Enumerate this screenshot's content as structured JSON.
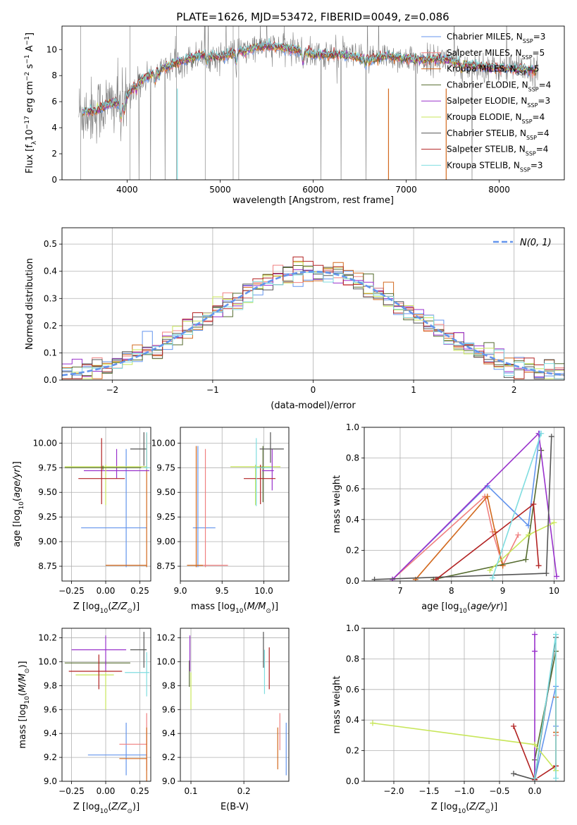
{
  "figure_title": "PLATE=1626, MJD=53472, FIBERID=0049, z=0.086",
  "colors": {
    "Chabrier MILES": "#6495ed",
    "Salpeter MILES": "#f08080",
    "Kroupa MILES": "#d2691e",
    "Chabrier ELODIE": "#556b2f",
    "Salpeter ELODIE": "#9932cc",
    "Kroupa ELODIE": "#c8e65a",
    "Chabrier STELIB": "#555555",
    "Salpeter STELIB": "#b22222",
    "Kroupa STELIB": "#7fdde0",
    "data": "#808080"
  },
  "chart_data": [
    {
      "id": "spectrum",
      "type": "line",
      "xlabel": "wavelength [Angstrom, rest frame]",
      "ylabel": "Flux [f_λ 10^-17 erg cm^-2 s^-1 A^-1]",
      "xlim": [
        3300,
        8700
      ],
      "ylim": [
        0,
        11.8
      ],
      "xticks": [
        4000,
        5000,
        6000,
        7000,
        8000
      ],
      "yticks": [
        0,
        2,
        4,
        6,
        8,
        10
      ],
      "legend_position": "right",
      "legend": [
        {
          "label": "Chabrier MILES, N",
          "sub": "SSP",
          "post": "=3"
        },
        {
          "label": "Salpeter MILES, N",
          "sub": "SSP",
          "post": "=5"
        },
        {
          "label": "Kroupa MILES, N",
          "sub": "SSP",
          "post": "=5"
        },
        {
          "label": "Chabrier ELODIE, N",
          "sub": "SSP",
          "post": "=4"
        },
        {
          "label": "Salpeter ELODIE, N",
          "sub": "SSP",
          "post": "=3"
        },
        {
          "label": "Kroupa ELODIE, N",
          "sub": "SSP",
          "post": "=4"
        },
        {
          "label": "Chabrier STELIB, N",
          "sub": "SSP",
          "post": "=4"
        },
        {
          "label": "Salpeter STELIB, N",
          "sub": "SSP",
          "post": "=4"
        },
        {
          "label": "Kroupa STELIB, N",
          "sub": "SSP",
          "post": "=3"
        }
      ],
      "model_trend": {
        "x": [
          3500,
          3650,
          3800,
          3950,
          4100,
          4300,
          4500,
          4800,
          5000,
          5200,
          5500,
          5800,
          6000,
          6300,
          6600,
          6800,
          7000,
          7200,
          7400,
          7600,
          7800,
          8000,
          8200,
          8400
        ],
        "y": [
          5.2,
          5.3,
          5.8,
          6.0,
          7.4,
          8.3,
          8.9,
          9.6,
          9.4,
          9.9,
          10.3,
          10.0,
          9.6,
          9.6,
          9.2,
          9.5,
          9.3,
          9.2,
          9.3,
          8.9,
          8.7,
          8.6,
          8.5,
          8.4
        ]
      }
    },
    {
      "id": "residuals",
      "type": "step",
      "xlabel": "(data-model)/error",
      "ylabel": "Normed distribution",
      "xlim": [
        -2.5,
        2.5
      ],
      "ylim": [
        0,
        0.56
      ],
      "xticks": [
        -2,
        -1,
        0,
        1,
        2
      ],
      "yticks": [
        0.0,
        0.1,
        0.2,
        0.3,
        0.4,
        0.5
      ],
      "legend_position": "top-right",
      "legend": [
        "N(0, 1)"
      ]
    },
    {
      "id": "age_vs_Z",
      "type": "errorbar",
      "xlabel": "Z [log10(Z/Z⊙)]",
      "ylabel": "age [log10(age/yr)]",
      "xlim": [
        -0.32,
        0.33
      ],
      "ylim": [
        8.6,
        10.16
      ],
      "xticks": [
        -0.25,
        0.0,
        0.25
      ],
      "yticks": [
        8.75,
        9.0,
        9.25,
        9.5,
        9.75,
        10.0
      ],
      "points": [
        {
          "model": "Chabrier MILES",
          "x": 0.15,
          "xerr": [
            0.33,
            0.15
          ],
          "y": 9.14,
          "yerr": [
            0.4,
            0.8
          ]
        },
        {
          "model": "Kroupa MILES",
          "x": 0.3,
          "xerr": [
            0.3,
            0.0
          ],
          "y": 8.76,
          "yerr": [
            0.02,
            1.34
          ]
        },
        {
          "model": "Salpeter ELODIE",
          "x": 0.08,
          "xerr": [
            0.24,
            0.24
          ],
          "y": 9.72,
          "yerr": [
            0.08,
            0.22
          ]
        },
        {
          "model": "Kroupa ELODIE",
          "x": 0.0,
          "xerr": [
            0.3,
            0.3
          ],
          "y": 9.76,
          "yerr": [
            0.39,
            0.02
          ]
        },
        {
          "model": "Chabrier ELODIE",
          "x": -0.02,
          "xerr": [
            0.28,
            0.28
          ],
          "y": 9.75,
          "yerr": [
            0.02,
            0.02
          ]
        },
        {
          "model": "Salpeter STELIB",
          "x": -0.03,
          "xerr": [
            0.17,
            0.17
          ],
          "y": 9.64,
          "yerr": [
            0.26,
            0.41
          ]
        },
        {
          "model": "Chabrier STELIB",
          "x": 0.28,
          "xerr": [
            0.1,
            0.02
          ],
          "y": 9.94,
          "yerr": [
            0.17,
            0.17
          ]
        },
        {
          "model": "Kroupa STELIB",
          "x": 0.3,
          "xerr": [
            0.02,
            0.02
          ],
          "y": 9.75,
          "yerr": [
            0.02,
            0.36
          ]
        }
      ]
    },
    {
      "id": "age_vs_mass",
      "type": "errorbar",
      "xlabel": "mass [log10(M/M⊙)]",
      "ylabel": "",
      "xlim": [
        9.0,
        10.3
      ],
      "ylim": [
        8.6,
        10.16
      ],
      "xticks": [
        9.0,
        9.5,
        10.0
      ],
      "yticks": [
        8.75,
        9.0,
        9.25,
        9.5,
        9.75,
        10.0
      ],
      "points": [
        {
          "model": "Chabrier MILES",
          "x": 9.21,
          "xerr": [
            0.06,
            0.21
          ],
          "y": 9.14,
          "yerr": [
            0.4,
            0.83
          ]
        },
        {
          "model": "Salpeter MILES",
          "x": 9.3,
          "xerr": [
            0.09,
            0.27
          ],
          "y": 8.76,
          "yerr": [
            0.02,
            1.18
          ]
        },
        {
          "model": "Kroupa MILES",
          "x": 9.19,
          "xerr": [
            0.11,
            0.08
          ],
          "y": 8.76,
          "yerr": [
            0.02,
            1.21
          ]
        },
        {
          "model": "Kroupa ELODIE",
          "x": 9.9,
          "xerr": [
            0.3,
            0.3
          ],
          "y": 9.76,
          "yerr": [
            0.39,
            0.02
          ]
        },
        {
          "model": "Chabrier ELODIE",
          "x": 9.99,
          "xerr": [
            0.02,
            0.02
          ],
          "y": 9.75,
          "yerr": [
            0.35,
            0.22
          ]
        },
        {
          "model": "Salpeter ELODIE",
          "x": 10.1,
          "xerr": [
            0.12,
            0.02
          ],
          "y": 9.72,
          "yerr": [
            0.2,
            0.22
          ]
        },
        {
          "model": "Salpeter STELIB",
          "x": 9.96,
          "xerr": [
            0.2,
            0.18
          ],
          "y": 9.64,
          "yerr": [
            0.26,
            0.14
          ]
        },
        {
          "model": "Chabrier STELIB",
          "x": 10.08,
          "xerr": [
            0.13,
            0.16
          ],
          "y": 9.94,
          "yerr": [
            0.14,
            0.17
          ]
        },
        {
          "model": "Kroupa STELIB",
          "x": 9.91,
          "xerr": [
            0.02,
            0.19
          ],
          "y": 9.75,
          "yerr": [
            0.39,
            0.3
          ]
        }
      ]
    },
    {
      "id": "mass_weight_vs_age",
      "type": "line",
      "xlabel": "age [log10(age/yr)]",
      "ylabel": "mass weight",
      "xlim": [
        6.3,
        10.2
      ],
      "ylim": [
        0,
        1.0
      ],
      "xticks": [
        7,
        8,
        9,
        10
      ],
      "yticks": [
        0.0,
        0.2,
        0.4,
        0.6,
        0.8,
        1.0
      ],
      "series": [
        {
          "model": "Chabrier MILES",
          "x": [
            6.85,
            8.7,
            9.5,
            9.72
          ],
          "y": [
            0.01,
            0.62,
            0.36,
            0.96
          ]
        },
        {
          "model": "Salpeter MILES",
          "x": [
            6.85,
            8.65,
            8.8,
            9.0,
            9.3
          ],
          "y": [
            0.01,
            0.55,
            0.32,
            0.1,
            0.3
          ]
        },
        {
          "model": "Kroupa MILES",
          "x": [
            7.3,
            8.7,
            8.85,
            9.0
          ],
          "y": [
            0.01,
            0.55,
            0.32,
            0.1
          ]
        },
        {
          "model": "Chabrier ELODIE",
          "x": [
            7.65,
            9.45,
            9.75
          ],
          "y": [
            0.01,
            0.14,
            0.85
          ]
        },
        {
          "model": "Salpeter ELODIE",
          "x": [
            6.85,
            9.7,
            10.05
          ],
          "y": [
            0.01,
            0.96,
            0.03
          ]
        },
        {
          "model": "Kroupa ELODIE",
          "x": [
            8.75,
            9.5,
            10.0
          ],
          "y": [
            0.07,
            0.3,
            0.38
          ]
        },
        {
          "model": "Chabrier STELIB",
          "x": [
            6.5,
            9.85,
            9.95
          ],
          "y": [
            0.01,
            0.05,
            0.94
          ]
        },
        {
          "model": "Salpeter STELIB",
          "x": [
            7.7,
            9.6,
            9.7
          ],
          "y": [
            0.01,
            0.5,
            0.1
          ]
        },
        {
          "model": "Kroupa STELIB",
          "x": [
            8.8,
            9.75
          ],
          "y": [
            0.02,
            0.96
          ]
        }
      ]
    },
    {
      "id": "mass_vs_Z",
      "type": "errorbar",
      "xlabel": "Z [log10(Z/Z⊙)]",
      "ylabel": "mass [log10(M/M⊙)]",
      "xlim": [
        -0.32,
        0.33
      ],
      "ylim": [
        9.0,
        10.28
      ],
      "xticks": [
        -0.25,
        0.0,
        0.25
      ],
      "yticks": [
        9.0,
        9.2,
        9.4,
        9.6,
        9.8,
        10.0,
        10.2
      ],
      "points": [
        {
          "model": "Chabrier MILES",
          "x": 0.15,
          "xerr": [
            0.28,
            0.15
          ],
          "y": 9.22,
          "yerr": [
            0.17,
            0.27
          ]
        },
        {
          "model": "Salpeter MILES",
          "x": 0.3,
          "xerr": [
            0.2,
            0.0
          ],
          "y": 9.31,
          "yerr": [
            0.22,
            0.26
          ]
        },
        {
          "model": "Kroupa MILES",
          "x": 0.3,
          "xerr": [
            0.2,
            0.0
          ],
          "y": 9.19,
          "yerr": [
            0.19,
            0.26
          ]
        },
        {
          "model": "Chabrier ELODIE",
          "x": 0.0,
          "xerr": [
            0.3,
            0.18
          ],
          "y": 9.99,
          "yerr": [
            0.02,
            0.02
          ]
        },
        {
          "model": "Salpeter ELODIE",
          "x": 0.0,
          "xerr": [
            0.25,
            0.15
          ],
          "y": 10.1,
          "yerr": [
            0.18,
            0.12
          ]
        },
        {
          "model": "Kroupa ELODIE",
          "x": 0.0,
          "xerr": [
            0.22,
            0.06
          ],
          "y": 9.89,
          "yerr": [
            0.29,
            0.02
          ]
        },
        {
          "model": "Salpeter STELIB",
          "x": -0.05,
          "xerr": [
            0.22,
            0.17
          ],
          "y": 9.92,
          "yerr": [
            0.15,
            0.14
          ]
        },
        {
          "model": "Chabrier STELIB",
          "x": 0.28,
          "xerr": [
            0.1,
            0.02
          ],
          "y": 10.1,
          "yerr": [
            0.15,
            0.15
          ]
        },
        {
          "model": "Kroupa STELIB",
          "x": 0.3,
          "xerr": [
            0.16,
            0.02
          ],
          "y": 9.91,
          "yerr": [
            0.2,
            0.17
          ]
        }
      ]
    },
    {
      "id": "mass_vs_ebv",
      "type": "errorbar",
      "xlabel": "E(B-V)",
      "ylabel": "",
      "xlim": [
        0.08,
        0.285
      ],
      "ylim": [
        9.0,
        10.28
      ],
      "xticks": [
        0.1,
        0.2
      ],
      "yticks": [
        9.0,
        9.2,
        9.4,
        9.6,
        9.8,
        10.0,
        10.2
      ],
      "points": [
        {
          "model": "Chabrier MILES",
          "x": 0.28,
          "y": 9.22,
          "yerr": [
            0.17,
            0.27
          ]
        },
        {
          "model": "Salpeter MILES",
          "x": 0.268,
          "y": 9.31,
          "yerr": [
            0.05,
            0.26
          ]
        },
        {
          "model": "Kroupa MILES",
          "x": 0.264,
          "y": 9.19,
          "yerr": [
            0.09,
            0.26
          ]
        },
        {
          "model": "Chabrier ELODIE",
          "x": 0.097,
          "y": 9.99,
          "yerr": [
            0.2,
            0.02
          ]
        },
        {
          "model": "Salpeter ELODIE",
          "x": 0.098,
          "y": 10.1,
          "yerr": [
            0.18,
            0.12
          ]
        },
        {
          "model": "Kroupa ELODIE",
          "x": 0.1,
          "y": 9.89,
          "yerr": [
            0.29,
            0.02
          ]
        },
        {
          "model": "Salpeter STELIB",
          "x": 0.248,
          "y": 9.92,
          "yerr": [
            0.15,
            0.2
          ]
        },
        {
          "model": "Chabrier STELIB",
          "x": 0.237,
          "y": 10.1,
          "yerr": [
            0.15,
            0.15
          ]
        },
        {
          "model": "Kroupa STELIB",
          "x": 0.239,
          "y": 9.93,
          "yerr": [
            0.2,
            0.17
          ]
        }
      ]
    },
    {
      "id": "mass_weight_vs_Z",
      "type": "line",
      "xlabel": "Z [log10(Z/Z⊙)]",
      "ylabel": "mass weight",
      "xlim": [
        -2.42,
        0.42
      ],
      "ylim": [
        0,
        1.0
      ],
      "xticks": [
        -2.0,
        -1.5,
        -1.0,
        -0.5,
        0.0
      ],
      "yticks": [
        0.0,
        0.2,
        0.4,
        0.6,
        0.8,
        1.0
      ],
      "series": [
        {
          "model": "Chabrier MILES",
          "x": [
            0.0,
            0.3,
            0.3
          ],
          "y": [
            0.01,
            0.62,
            0.36
          ]
        },
        {
          "model": "Salpeter MILES",
          "x": [
            0.3,
            0.3,
            0.3,
            0.3
          ],
          "y": [
            0.55,
            0.32,
            0.1,
            0.3
          ]
        },
        {
          "model": "Kroupa MILES",
          "x": [
            0.3,
            0.3,
            0.3
          ],
          "y": [
            0.55,
            0.32,
            0.1
          ]
        },
        {
          "model": "Chabrier ELODIE",
          "x": [
            0.0,
            0.0,
            0.3
          ],
          "y": [
            0.01,
            0.14,
            0.85
          ]
        },
        {
          "model": "Salpeter ELODIE",
          "x": [
            0.0,
            0.0,
            0.0
          ],
          "y": [
            0.01,
            0.96,
            0.85
          ]
        },
        {
          "model": "Kroupa ELODIE",
          "x": [
            -2.3,
            0.0,
            0.3
          ],
          "y": [
            0.38,
            0.24,
            0.07
          ]
        },
        {
          "model": "Chabrier STELIB",
          "x": [
            -0.3,
            0.0,
            0.3
          ],
          "y": [
            0.05,
            0.01,
            0.94
          ]
        },
        {
          "model": "Salpeter STELIB",
          "x": [
            -0.3,
            0.0,
            0.3
          ],
          "y": [
            0.36,
            0.01,
            0.1
          ]
        },
        {
          "model": "Kroupa STELIB",
          "x": [
            0.0,
            0.3,
            0.3
          ],
          "y": [
            0.02,
            0.96,
            0.02
          ]
        }
      ]
    }
  ]
}
